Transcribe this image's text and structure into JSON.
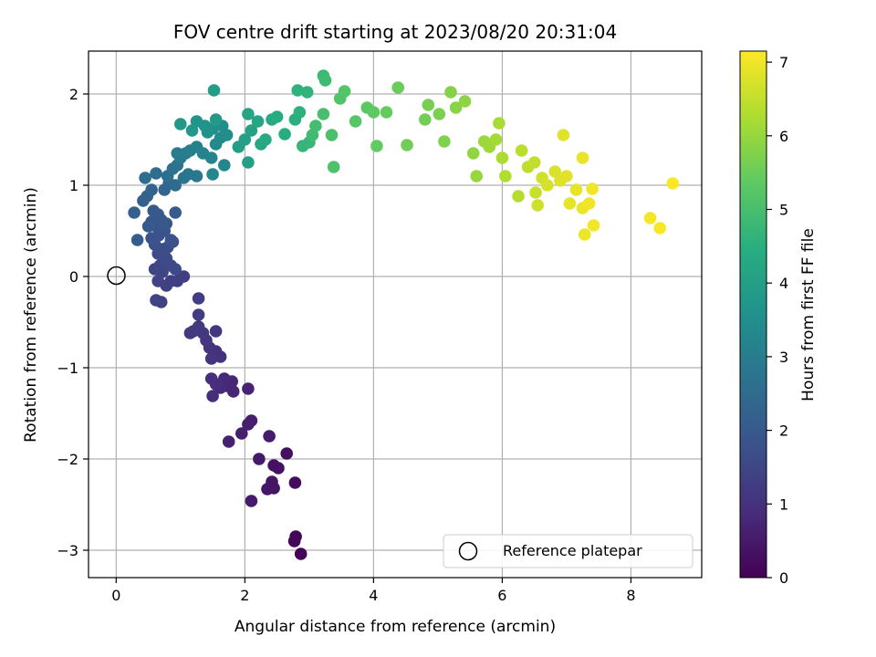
{
  "chart_data": {
    "type": "scatter",
    "title": "FOV centre drift starting at 2023/08/20 20:31:04",
    "xlabel": "Angular distance from reference (arcmin)",
    "ylabel": "Rotation from reference (arcmin)",
    "xlim": [
      -0.43,
      9.1
    ],
    "ylim": [
      -3.3,
      2.47
    ],
    "xticks": [
      0,
      2,
      4,
      6,
      8
    ],
    "xtick_labels": [
      "0",
      "2",
      "4",
      "6",
      "8"
    ],
    "yticks": [
      -3,
      -2,
      -1,
      0,
      1,
      2
    ],
    "ytick_labels": [
      "−3",
      "−2",
      "−1",
      "0",
      "1",
      "2"
    ],
    "grid": true,
    "legend": {
      "position": "lower-right",
      "entries": [
        "Reference platepar"
      ]
    },
    "colorbar": {
      "label": "Hours from first FF file",
      "colormap": "viridis",
      "range": [
        0,
        7.15
      ],
      "ticks": [
        0,
        1,
        2,
        3,
        4,
        5,
        6,
        7
      ],
      "tick_labels": [
        "0",
        "1",
        "2",
        "3",
        "4",
        "5",
        "6",
        "7"
      ]
    },
    "reference_point": {
      "x": 0,
      "y": 0,
      "label": "Reference platepar"
    },
    "points": [
      [
        2.87,
        -3.04,
        0.05
      ],
      [
        2.79,
        -2.85,
        0.1
      ],
      [
        2.77,
        -2.9,
        0.12
      ],
      [
        2.78,
        -2.26,
        0.2
      ],
      [
        2.65,
        -1.94,
        0.28
      ],
      [
        2.45,
        -2.07,
        0.32
      ],
      [
        2.52,
        -2.1,
        0.35
      ],
      [
        2.42,
        -2.25,
        0.38
      ],
      [
        2.45,
        -2.32,
        0.42
      ],
      [
        2.35,
        -2.33,
        0.45
      ],
      [
        2.22,
        -2.0,
        0.48
      ],
      [
        2.1,
        -2.46,
        0.5
      ],
      [
        2.38,
        -1.75,
        0.55
      ],
      [
        2.1,
        -1.58,
        0.58
      ],
      [
        2.05,
        -1.62,
        0.6
      ],
      [
        1.95,
        -1.72,
        0.63
      ],
      [
        1.75,
        -1.81,
        0.66
      ],
      [
        2.05,
        -1.23,
        0.7
      ],
      [
        1.82,
        -1.26,
        0.75
      ],
      [
        1.8,
        -1.15,
        0.78
      ],
      [
        1.72,
        -1.2,
        0.8
      ],
      [
        1.68,
        -1.12,
        0.84
      ],
      [
        1.62,
        -1.22,
        0.86
      ],
      [
        1.55,
        -1.18,
        0.9
      ],
      [
        1.5,
        -1.31,
        0.92
      ],
      [
        1.48,
        -1.12,
        0.95
      ],
      [
        1.62,
        -0.88,
        1.0
      ],
      [
        1.55,
        -0.82,
        1.02
      ],
      [
        1.45,
        -0.78,
        1.05
      ],
      [
        1.48,
        -0.9,
        1.08
      ],
      [
        1.4,
        -0.7,
        1.1
      ],
      [
        1.55,
        -0.6,
        1.12
      ],
      [
        1.35,
        -0.62,
        1.15
      ],
      [
        1.28,
        -0.55,
        1.18
      ],
      [
        1.2,
        -0.6,
        1.2
      ],
      [
        1.15,
        -0.62,
        1.22
      ],
      [
        1.28,
        -0.42,
        1.25
      ],
      [
        1.28,
        -0.24,
        1.28
      ],
      [
        1.05,
        0.0,
        1.3
      ],
      [
        0.95,
        -0.05,
        1.33
      ],
      [
        0.85,
        -0.05,
        1.36
      ],
      [
        0.78,
        -0.1,
        1.38
      ],
      [
        0.7,
        -0.28,
        1.4
      ],
      [
        0.62,
        -0.26,
        1.42
      ],
      [
        0.65,
        -0.05,
        1.45
      ],
      [
        0.72,
        0.05,
        1.48
      ],
      [
        0.6,
        0.08,
        1.5
      ],
      [
        0.68,
        0.12,
        1.52
      ],
      [
        0.75,
        0.15,
        1.55
      ],
      [
        0.85,
        0.12,
        1.58
      ],
      [
        0.92,
        0.08,
        1.6
      ],
      [
        0.78,
        0.2,
        1.62
      ],
      [
        0.65,
        0.25,
        1.65
      ],
      [
        0.72,
        0.3,
        1.68
      ],
      [
        0.8,
        0.32,
        1.7
      ],
      [
        0.88,
        0.38,
        1.72
      ],
      [
        0.6,
        0.35,
        1.75
      ],
      [
        0.55,
        0.42,
        1.78
      ],
      [
        0.66,
        0.45,
        1.8
      ],
      [
        0.75,
        0.5,
        1.82
      ],
      [
        0.85,
        0.4,
        1.85
      ],
      [
        0.62,
        0.55,
        1.88
      ],
      [
        0.55,
        0.6,
        1.9
      ],
      [
        0.7,
        0.62,
        1.92
      ],
      [
        0.78,
        0.58,
        1.95
      ],
      [
        0.65,
        0.68,
        1.98
      ],
      [
        0.58,
        0.72,
        2.0
      ],
      [
        0.5,
        0.55,
        2.02
      ],
      [
        0.92,
        0.7,
        2.05
      ],
      [
        0.33,
        0.4,
        2.1
      ],
      [
        0.28,
        0.7,
        2.15
      ],
      [
        0.42,
        0.83,
        2.2
      ],
      [
        0.48,
        0.88,
        2.25
      ],
      [
        0.55,
        0.95,
        2.3
      ],
      [
        0.75,
        0.95,
        2.35
      ],
      [
        0.82,
        1.02,
        2.4
      ],
      [
        0.92,
        1.0,
        2.45
      ],
      [
        0.62,
        1.13,
        2.5
      ],
      [
        0.45,
        1.08,
        2.55
      ],
      [
        0.8,
        1.1,
        2.6
      ],
      [
        0.88,
        1.18,
        2.65
      ],
      [
        0.95,
        1.22,
        2.7
      ],
      [
        1.05,
        1.08,
        2.75
      ],
      [
        1.12,
        1.12,
        2.8
      ],
      [
        1.25,
        1.1,
        2.85
      ],
      [
        1.0,
        1.3,
        2.9
      ],
      [
        0.95,
        1.35,
        2.95
      ],
      [
        1.08,
        1.35,
        3.0
      ],
      [
        1.15,
        1.38,
        3.05
      ],
      [
        1.25,
        1.42,
        3.1
      ],
      [
        1.35,
        1.35,
        3.15
      ],
      [
        1.48,
        1.3,
        3.2
      ],
      [
        1.5,
        1.12,
        3.25
      ],
      [
        1.68,
        1.22,
        3.3
      ],
      [
        1.55,
        1.45,
        3.35
      ],
      [
        1.62,
        1.52,
        3.4
      ],
      [
        1.72,
        1.55,
        3.45
      ],
      [
        1.65,
        1.65,
        3.5
      ],
      [
        1.5,
        1.62,
        3.55
      ],
      [
        1.42,
        1.58,
        3.6
      ],
      [
        1.38,
        1.65,
        3.65
      ],
      [
        1.25,
        1.7,
        3.7
      ],
      [
        1.18,
        1.6,
        3.75
      ],
      [
        1.0,
        1.67,
        3.8
      ],
      [
        1.55,
        1.72,
        3.85
      ],
      [
        1.52,
        2.04,
        3.9
      ],
      [
        1.9,
        1.42,
        3.95
      ],
      [
        2.05,
        1.25,
        4.0
      ],
      [
        2.0,
        1.5,
        4.05
      ],
      [
        2.1,
        1.6,
        4.1
      ],
      [
        2.2,
        1.7,
        4.15
      ],
      [
        2.05,
        1.78,
        4.2
      ],
      [
        2.25,
        1.45,
        4.25
      ],
      [
        2.32,
        1.5,
        4.3
      ],
      [
        2.42,
        1.72,
        4.35
      ],
      [
        2.5,
        1.75,
        4.4
      ],
      [
        2.62,
        1.56,
        4.45
      ],
      [
        2.78,
        1.72,
        4.5
      ],
      [
        2.85,
        1.8,
        4.55
      ],
      [
        2.82,
        2.04,
        4.6
      ],
      [
        2.97,
        2.02,
        4.65
      ],
      [
        2.9,
        1.43,
        4.7
      ],
      [
        3.0,
        1.47,
        4.75
      ],
      [
        3.22,
        2.2,
        4.8
      ],
      [
        3.25,
        2.15,
        4.85
      ],
      [
        3.05,
        1.55,
        4.9
      ],
      [
        3.1,
        1.65,
        4.95
      ],
      [
        3.22,
        1.78,
        5.0
      ],
      [
        3.35,
        1.55,
        5.05
      ],
      [
        3.38,
        1.2,
        5.1
      ],
      [
        3.48,
        1.95,
        5.15
      ],
      [
        3.55,
        2.03,
        5.2
      ],
      [
        3.72,
        1.7,
        5.25
      ],
      [
        3.9,
        1.85,
        5.3
      ],
      [
        4.0,
        1.8,
        5.35
      ],
      [
        4.05,
        1.43,
        5.4
      ],
      [
        4.2,
        1.8,
        5.45
      ],
      [
        4.38,
        2.07,
        5.5
      ],
      [
        4.52,
        1.44,
        5.55
      ],
      [
        4.8,
        1.72,
        5.6
      ],
      [
        4.85,
        1.88,
        5.65
      ],
      [
        5.02,
        1.78,
        5.7
      ],
      [
        5.1,
        1.48,
        5.75
      ],
      [
        5.2,
        2.02,
        5.8
      ],
      [
        5.28,
        1.85,
        5.85
      ],
      [
        5.42,
        1.92,
        5.9
      ],
      [
        5.55,
        1.35,
        5.95
      ],
      [
        5.6,
        1.1,
        6.0
      ],
      [
        5.72,
        1.48,
        6.05
      ],
      [
        5.8,
        1.42,
        6.1
      ],
      [
        5.9,
        1.5,
        6.15
      ],
      [
        5.95,
        1.68,
        6.2
      ],
      [
        6.0,
        1.3,
        6.25
      ],
      [
        6.05,
        1.1,
        6.3
      ],
      [
        6.25,
        0.88,
        6.35
      ],
      [
        6.3,
        1.38,
        6.4
      ],
      [
        6.4,
        1.2,
        6.45
      ],
      [
        6.5,
        1.25,
        6.5
      ],
      [
        6.52,
        0.92,
        6.55
      ],
      [
        6.55,
        0.78,
        6.6
      ],
      [
        6.62,
        1.08,
        6.65
      ],
      [
        6.7,
        1.0,
        6.7
      ],
      [
        6.82,
        1.15,
        6.75
      ],
      [
        6.9,
        1.05,
        6.8
      ],
      [
        6.95,
        1.55,
        6.82
      ],
      [
        7.0,
        1.1,
        6.85
      ],
      [
        7.05,
        0.8,
        6.88
      ],
      [
        7.15,
        0.95,
        6.9
      ],
      [
        7.25,
        1.3,
        6.92
      ],
      [
        7.25,
        0.75,
        6.95
      ],
      [
        7.28,
        0.46,
        6.97
      ],
      [
        7.35,
        0.8,
        7.0
      ],
      [
        7.4,
        0.96,
        7.02
      ],
      [
        7.42,
        0.56,
        7.04
      ],
      [
        8.3,
        0.64,
        7.08
      ],
      [
        8.45,
        0.53,
        7.1
      ],
      [
        8.65,
        1.02,
        7.13
      ]
    ]
  }
}
